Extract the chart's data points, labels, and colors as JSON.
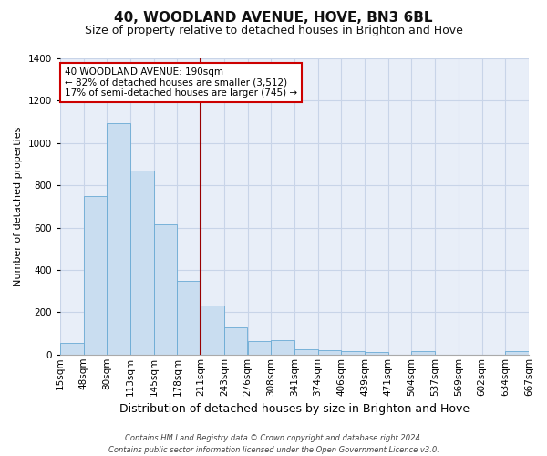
{
  "title": "40, WOODLAND AVENUE, HOVE, BN3 6BL",
  "subtitle": "Size of property relative to detached houses in Brighton and Hove",
  "xlabel": "Distribution of detached houses by size in Brighton and Hove",
  "ylabel": "Number of detached properties",
  "bin_labels": [
    "15sqm",
    "48sqm",
    "80sqm",
    "113sqm",
    "145sqm",
    "178sqm",
    "211sqm",
    "243sqm",
    "276sqm",
    "308sqm",
    "341sqm",
    "374sqm",
    "406sqm",
    "439sqm",
    "471sqm",
    "504sqm",
    "537sqm",
    "569sqm",
    "602sqm",
    "634sqm",
    "667sqm"
  ],
  "bar_values": [
    55,
    750,
    1095,
    870,
    615,
    350,
    230,
    130,
    65,
    70,
    25,
    20,
    15,
    10,
    0,
    15,
    0,
    0,
    0,
    15
  ],
  "bar_color": "#c9ddf0",
  "bar_edge_color": "#6aaad4",
  "vline_color": "#990000",
  "vline_x": 5.5,
  "ylim": [
    0,
    1400
  ],
  "yticks": [
    0,
    200,
    400,
    600,
    800,
    1000,
    1200,
    1400
  ],
  "annotation_title": "40 WOODLAND AVENUE: 190sqm",
  "annotation_line1": "← 82% of detached houses are smaller (3,512)",
  "annotation_line2": "17% of semi-detached houses are larger (745) →",
  "annotation_box_facecolor": "#ffffff",
  "annotation_box_edgecolor": "#cc0000",
  "footer_line1": "Contains HM Land Registry data © Crown copyright and database right 2024.",
  "footer_line2": "Contains public sector information licensed under the Open Government Licence v3.0.",
  "background_color": "#ffffff",
  "plot_bg_color": "#e8eef8",
  "grid_color": "#c8d4e8",
  "title_fontsize": 11,
  "subtitle_fontsize": 9,
  "xlabel_fontsize": 9,
  "ylabel_fontsize": 8,
  "tick_fontsize": 7.5,
  "footer_fontsize": 6
}
